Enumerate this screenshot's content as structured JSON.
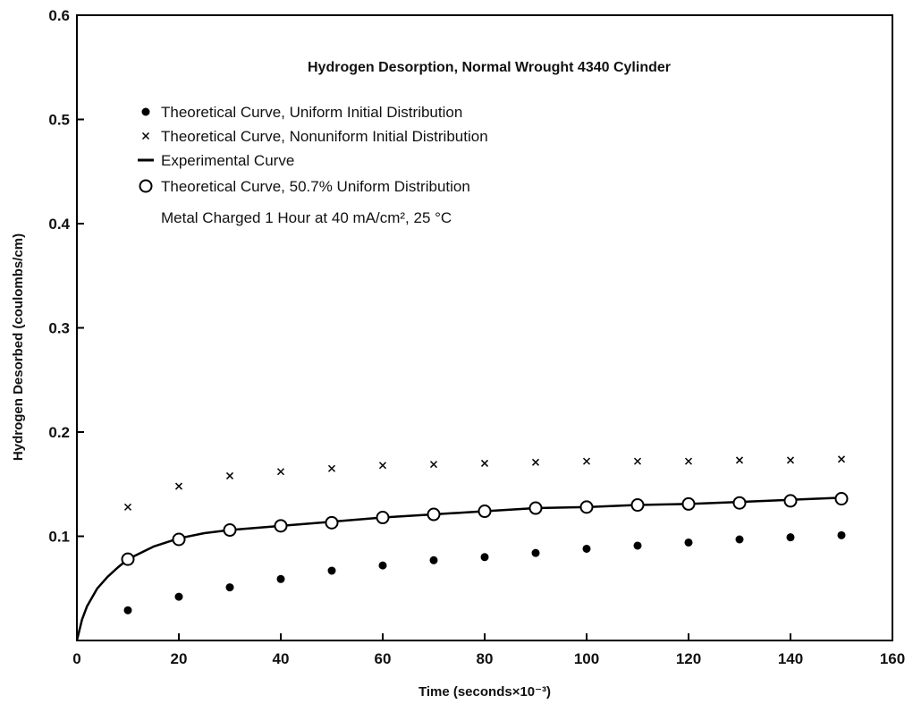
{
  "chart_data": {
    "type": "scatter",
    "title": "Hydrogen Desorption, Normal Wrought 4340 Cylinder",
    "xlabel": "Time (seconds×10⁻³)",
    "ylabel": "Hydrogen Desorbed (coulombs/cm)",
    "xlim": [
      0,
      160
    ],
    "ylim": [
      0,
      0.6
    ],
    "x_ticks": [
      "0",
      "20",
      "40",
      "60",
      "80",
      "100",
      "120",
      "140",
      "160"
    ],
    "y_ticks": [
      "0.1",
      "0.2",
      "0.3",
      "0.4",
      "0.5",
      "0.6"
    ],
    "grid": false,
    "legend_position": "top-left",
    "note_line": "Metal Charged 1 Hour at 40 mA/cm², 25 °C",
    "series": [
      {
        "name": "Theoretical Curve, Uniform Initial Distribution",
        "marker": "filled-circle",
        "x": [
          10,
          20,
          30,
          40,
          50,
          60,
          70,
          80,
          90,
          100,
          110,
          120,
          130,
          140,
          150
        ],
        "y": [
          0.029,
          0.042,
          0.051,
          0.059,
          0.067,
          0.072,
          0.077,
          0.08,
          0.084,
          0.088,
          0.091,
          0.094,
          0.097,
          0.099,
          0.101
        ]
      },
      {
        "name": "Theoretical Curve, Nonuniform Initial Distribution",
        "marker": "cross",
        "x": [
          10,
          20,
          30,
          40,
          50,
          60,
          70,
          80,
          90,
          100,
          110,
          120,
          130,
          140,
          150
        ],
        "y": [
          0.128,
          0.148,
          0.158,
          0.162,
          0.165,
          0.168,
          0.169,
          0.17,
          0.171,
          0.172,
          0.172,
          0.172,
          0.173,
          0.173,
          0.174
        ]
      },
      {
        "name": "Experimental Curve",
        "marker": "line",
        "x": [
          0,
          1,
          2,
          4,
          6,
          8,
          10,
          15,
          20,
          25,
          30,
          40,
          50,
          60,
          70,
          80,
          90,
          100,
          110,
          120,
          130,
          140,
          150
        ],
        "y": [
          0.0,
          0.02,
          0.033,
          0.05,
          0.061,
          0.07,
          0.078,
          0.09,
          0.098,
          0.103,
          0.106,
          0.11,
          0.114,
          0.118,
          0.121,
          0.124,
          0.127,
          0.128,
          0.13,
          0.131,
          0.133,
          0.135,
          0.137
        ]
      },
      {
        "name": "Theoretical Curve, 50.7% Uniform Distribution",
        "marker": "open-circle",
        "x": [
          10,
          20,
          30,
          40,
          50,
          60,
          70,
          80,
          90,
          100,
          110,
          120,
          130,
          140,
          150
        ],
        "y": [
          0.078,
          0.097,
          0.106,
          0.11,
          0.113,
          0.118,
          0.121,
          0.124,
          0.127,
          0.128,
          0.13,
          0.131,
          0.132,
          0.134,
          0.136
        ]
      }
    ]
  }
}
